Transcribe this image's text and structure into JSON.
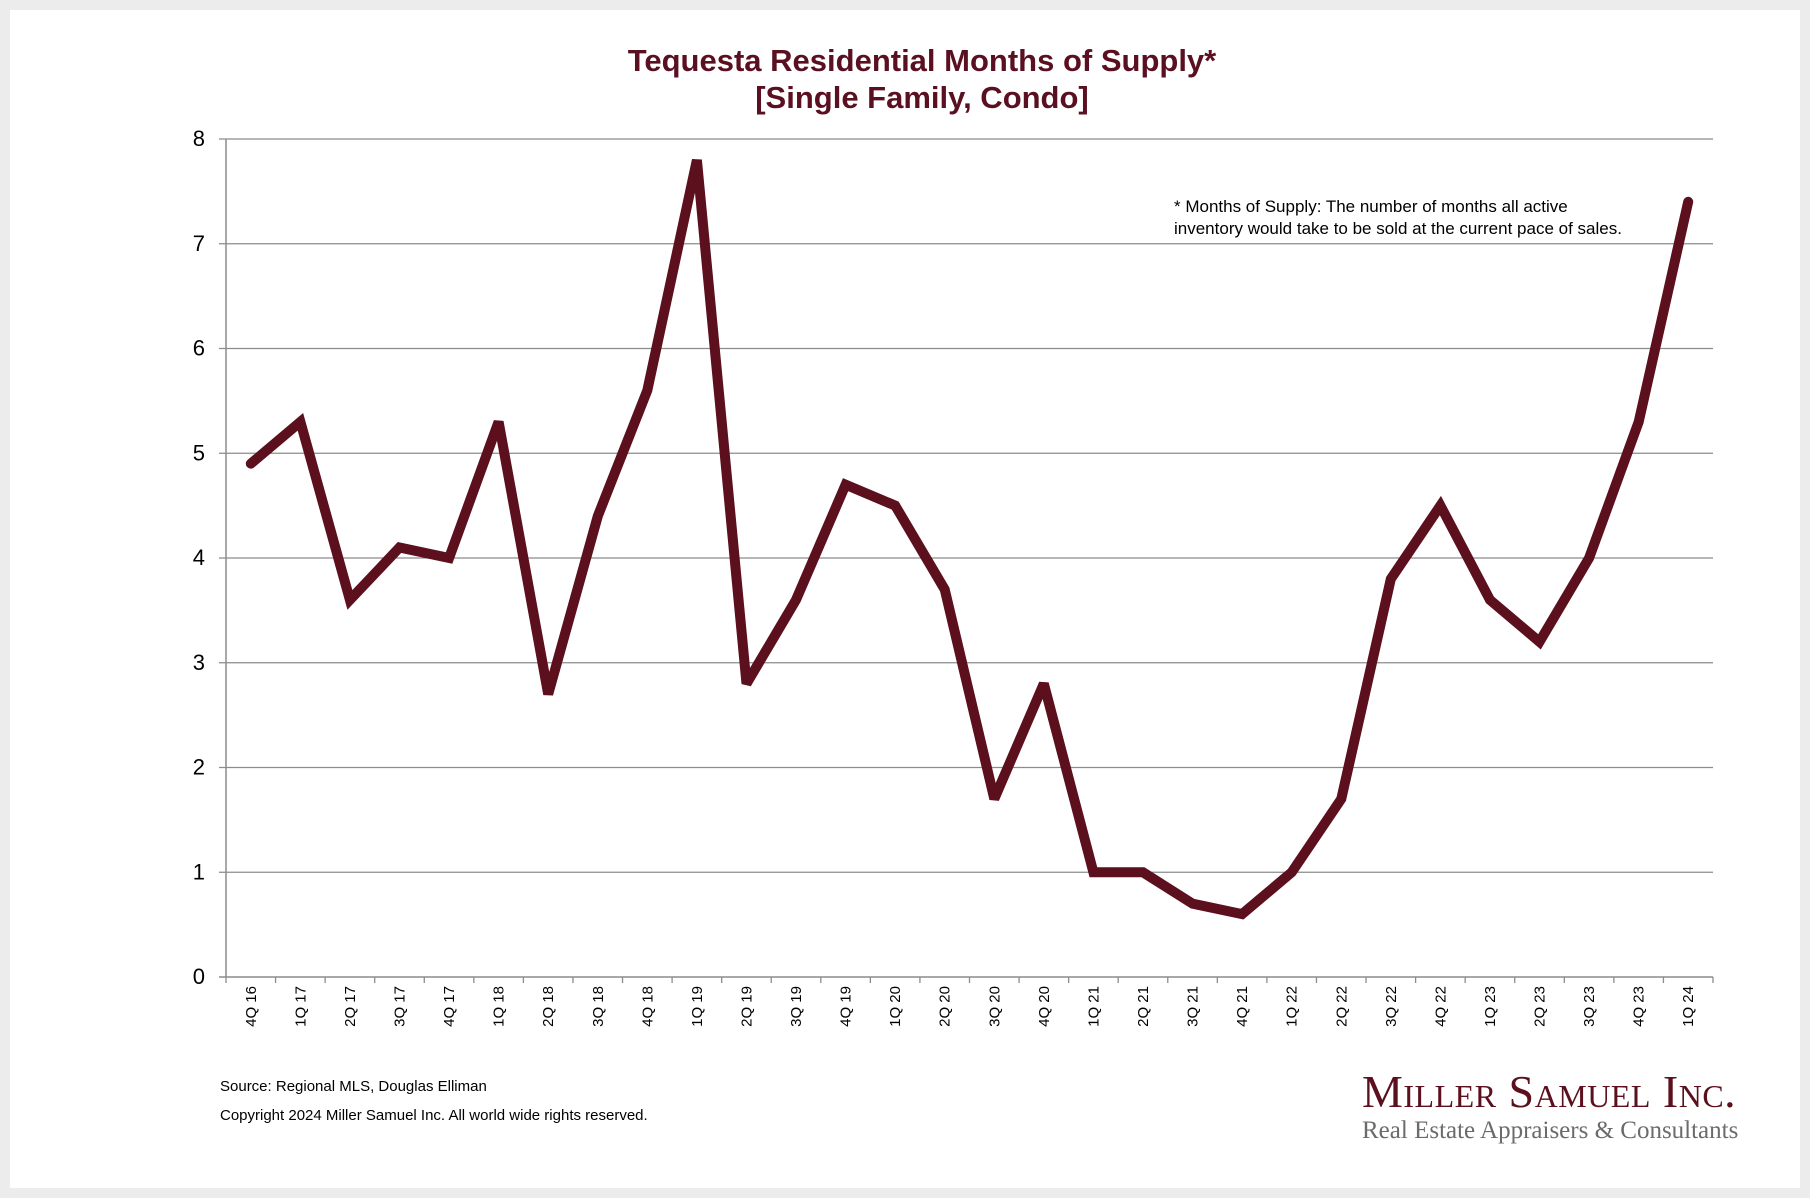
{
  "chart_data": {
    "type": "line",
    "title": "Tequesta Residential Months of Supply*",
    "subtitle": "[Single Family, Condo]",
    "xlabel": "",
    "ylabel": "",
    "ylim": [
      0,
      8
    ],
    "yticks": [
      0,
      1,
      2,
      3,
      4,
      5,
      6,
      7,
      8
    ],
    "grid": true,
    "legend": "none",
    "categories": [
      "4Q 16",
      "1Q 17",
      "2Q 17",
      "3Q 17",
      "4Q 17",
      "1Q 18",
      "2Q 18",
      "3Q 18",
      "4Q 18",
      "1Q 19",
      "2Q 19",
      "3Q 19",
      "4Q 19",
      "1Q 20",
      "2Q 20",
      "3Q 20",
      "4Q 20",
      "1Q 21",
      "2Q 21",
      "3Q 21",
      "4Q 21",
      "1Q 22",
      "2Q 22",
      "3Q 22",
      "4Q 22",
      "1Q 23",
      "2Q 23",
      "3Q 23",
      "4Q 23",
      "1Q 24"
    ],
    "series": [
      {
        "name": "Months of Supply",
        "color": "#5c0f1c",
        "values": [
          4.9,
          5.3,
          3.6,
          4.1,
          4.0,
          5.3,
          2.7,
          4.4,
          5.6,
          7.8,
          2.8,
          3.6,
          4.7,
          4.5,
          3.7,
          1.7,
          2.8,
          1.0,
          1.0,
          0.7,
          0.6,
          1.0,
          1.7,
          3.8,
          4.5,
          3.6,
          3.2,
          4.0,
          5.3,
          7.4
        ]
      }
    ],
    "annotation": [
      "* Months of Supply: The number of months all active",
      "inventory would take to be sold at the current pace of sales."
    ]
  },
  "footer": {
    "source": "Source: Regional MLS, Douglas Elliman",
    "copyright": "Copyright 2024 Miller Samuel Inc.  All world wide rights reserved."
  },
  "logo": {
    "name": "Miller Samuel Inc.",
    "tagline": "Real Estate Appraisers & Consultants"
  },
  "colors": {
    "title": "#5a1020",
    "line": "#5c0f1c",
    "grid": "#8c8c8c",
    "tagline": "#6b6b6b"
  }
}
